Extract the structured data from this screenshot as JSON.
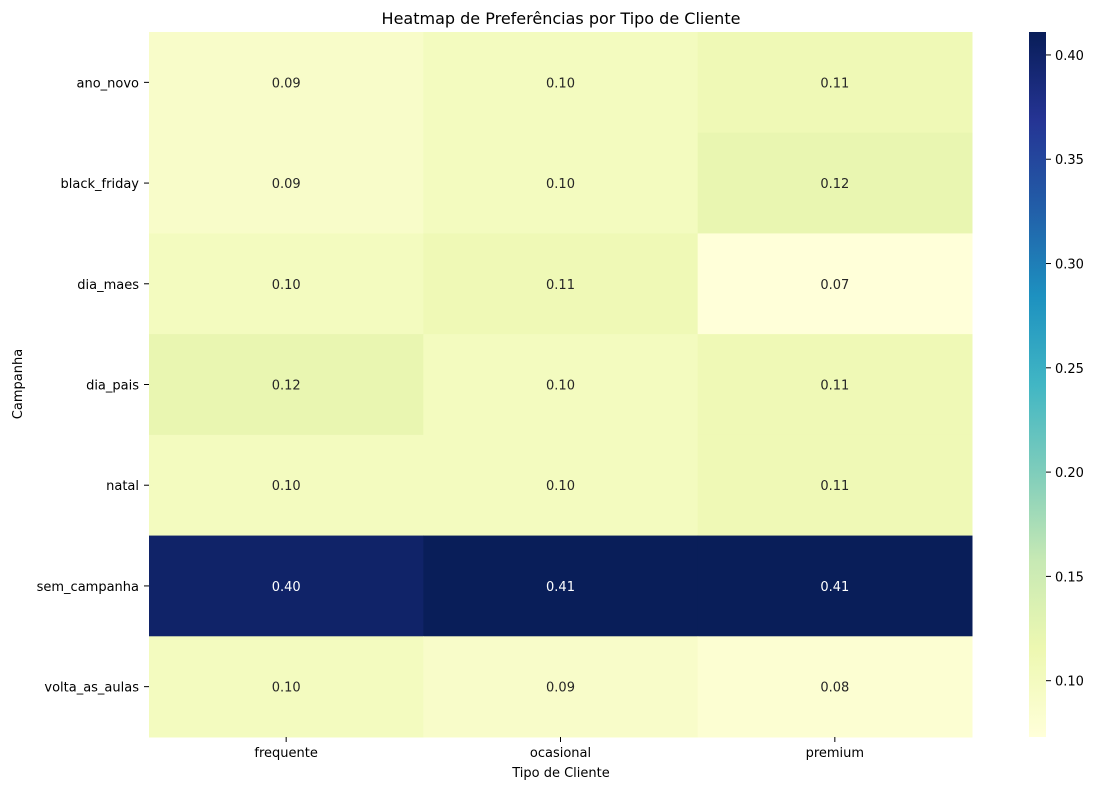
{
  "chart_data": {
    "type": "heatmap",
    "title": "Heatmap de Preferências por Tipo de Cliente",
    "xlabel": "Tipo de Cliente",
    "ylabel": "Campanha",
    "x_categories": [
      "frequente",
      "ocasional",
      "premium"
    ],
    "y_categories": [
      "ano_novo",
      "black_friday",
      "dia_maes",
      "dia_pais",
      "natal",
      "sem_campanha",
      "volta_as_aulas"
    ],
    "values": [
      [
        0.09,
        0.1,
        0.11
      ],
      [
        0.09,
        0.1,
        0.12
      ],
      [
        0.1,
        0.11,
        0.07
      ],
      [
        0.12,
        0.1,
        0.11
      ],
      [
        0.1,
        0.1,
        0.11
      ],
      [
        0.4,
        0.41,
        0.41
      ],
      [
        0.1,
        0.09,
        0.08
      ]
    ],
    "value_labels": [
      [
        "0.09",
        "0.10",
        "0.11"
      ],
      [
        "0.09",
        "0.10",
        "0.12"
      ],
      [
        "0.10",
        "0.11",
        "0.07"
      ],
      [
        "0.12",
        "0.10",
        "0.11"
      ],
      [
        "0.10",
        "0.10",
        "0.11"
      ],
      [
        "0.40",
        "0.41",
        "0.41"
      ],
      [
        "0.10",
        "0.09",
        "0.08"
      ]
    ],
    "colormap": "YlGnBu",
    "colorbar": {
      "range": [
        0.073,
        0.411
      ],
      "ticks": [
        0.1,
        0.15,
        0.2,
        0.25,
        0.3,
        0.35,
        0.4
      ],
      "tick_labels": [
        "0.10",
        "0.15",
        "0.20",
        "0.25",
        "0.30",
        "0.35",
        "0.40"
      ]
    },
    "grid": false,
    "legend": "colorbar-right"
  }
}
